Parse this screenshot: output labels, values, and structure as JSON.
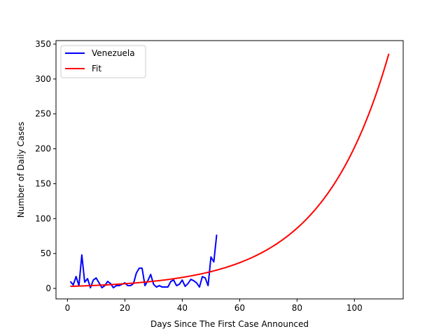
{
  "chart_data": {
    "type": "line",
    "title": "",
    "xlabel": "Days Since The First Case Announced",
    "ylabel": "Number of Daily Cases",
    "xlim": [
      -4,
      117
    ],
    "ylim": [
      -15,
      355
    ],
    "xticks": [
      0,
      20,
      40,
      60,
      80,
      100
    ],
    "yticks": [
      0,
      50,
      100,
      150,
      200,
      250,
      300,
      350
    ],
    "grid": false,
    "legend_position": "upper-left",
    "series": [
      {
        "name": "Venezuela",
        "color": "#0000ff",
        "x": [
          1,
          2,
          3,
          4,
          5,
          6,
          7,
          8,
          9,
          10,
          11,
          12,
          13,
          14,
          15,
          16,
          17,
          18,
          19,
          20,
          21,
          22,
          23,
          24,
          25,
          26,
          27,
          28,
          29,
          30,
          31,
          32,
          33,
          34,
          35,
          36,
          37,
          38,
          39,
          40,
          41,
          42,
          43,
          44,
          45,
          46,
          47,
          48,
          49,
          50,
          51,
          52
        ],
        "y": [
          10,
          5,
          17,
          4,
          48,
          9,
          14,
          1,
          12,
          15,
          8,
          1,
          4,
          10,
          7,
          1,
          4,
          4,
          6,
          8,
          4,
          4,
          7,
          22,
          29,
          29,
          4,
          11,
          20,
          6,
          2,
          4,
          2,
          2,
          2,
          10,
          12,
          4,
          6,
          12,
          3,
          7,
          13,
          11,
          8,
          2,
          17,
          15,
          4,
          45,
          38,
          77
        ]
      },
      {
        "name": "Fit",
        "color": "#ff0000",
        "x_range": [
          1,
          112
        ],
        "model": "exponential",
        "a": 2.88,
        "b": 0.0425
      }
    ]
  }
}
